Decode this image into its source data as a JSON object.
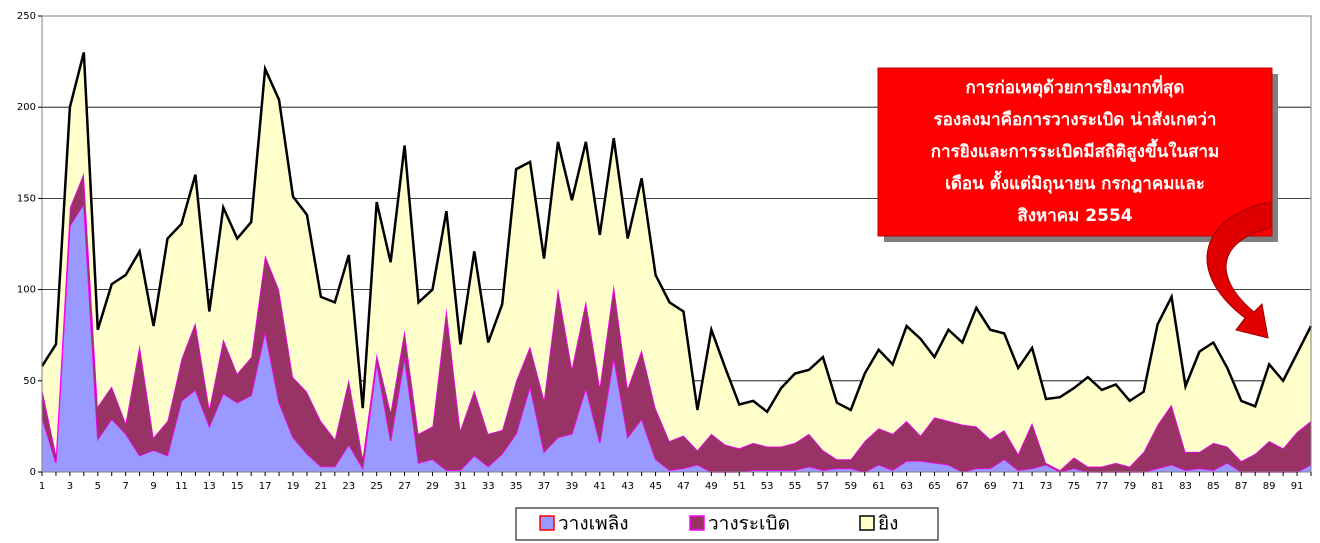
{
  "chart_data": {
    "type": "stacked_area",
    "categories": [
      1,
      null,
      3,
      null,
      5,
      null,
      7,
      null,
      9,
      null,
      11,
      null,
      13,
      null,
      15,
      null,
      17,
      null,
      19,
      null,
      21,
      null,
      23,
      null,
      25,
      null,
      27,
      null,
      29,
      null,
      31,
      null,
      33,
      null,
      35,
      null,
      37,
      null,
      39,
      null,
      41,
      null,
      43,
      null,
      45,
      null,
      47,
      null,
      49,
      null,
      51,
      null,
      53,
      null,
      55,
      null,
      57,
      null,
      59,
      null,
      61,
      null,
      63,
      null,
      65,
      null,
      67,
      null,
      69,
      null,
      71,
      null,
      73,
      null,
      75,
      null,
      77,
      null,
      79,
      null,
      81,
      null,
      83,
      null,
      85,
      null,
      87,
      null,
      89,
      null,
      91,
      null
    ],
    "series": [
      {
        "name": "วางเพลิง",
        "color": "#9999ff",
        "line_color": "#ff00ff",
        "values": [
          30,
          5,
          135,
          147,
          18,
          29,
          21,
          9,
          12,
          9,
          39,
          45,
          25,
          43,
          38,
          42,
          77,
          38,
          19,
          10,
          3,
          3,
          15,
          2,
          60,
          17,
          63,
          5,
          7,
          1,
          1,
          9,
          3,
          10,
          21,
          47,
          11,
          19,
          21,
          46,
          16,
          63,
          19,
          29,
          7,
          1,
          2,
          4,
          0,
          0,
          0,
          1,
          1,
          1,
          1,
          3,
          1,
          2,
          2,
          0,
          4,
          1,
          6,
          6,
          5,
          4,
          0,
          2,
          2,
          7,
          1,
          2,
          4,
          0,
          2,
          0,
          0,
          0,
          0,
          0,
          2,
          4,
          1,
          2,
          1,
          5,
          0,
          0,
          0,
          0,
          0,
          4
        ]
      },
      {
        "name": "วางระเบิด",
        "color": "#993366",
        "line_color": "#ff00ff",
        "values": [
          16,
          5,
          10,
          17,
          18,
          18,
          6,
          61,
          7,
          19,
          23,
          37,
          10,
          30,
          16,
          21,
          42,
          62,
          33,
          34,
          25,
          15,
          36,
          6,
          5,
          16,
          15,
          16,
          18,
          89,
          22,
          36,
          18,
          13,
          29,
          22,
          29,
          82,
          36,
          48,
          31,
          40,
          27,
          38,
          28,
          16,
          18,
          8,
          21,
          15,
          13,
          15,
          13,
          13,
          15,
          18,
          11,
          5,
          5,
          17,
          20,
          20,
          22,
          14,
          25,
          24,
          26,
          23,
          16,
          16,
          9,
          25,
          1,
          1,
          6,
          3,
          3,
          5,
          3,
          11,
          24,
          33,
          10,
          9,
          15,
          9,
          6,
          10,
          17,
          13,
          22,
          24
        ]
      },
      {
        "name": "ยิง",
        "color": "#ffffcc",
        "line_color": "#000000",
        "values": [
          12,
          60,
          55,
          66,
          42,
          56,
          81,
          51,
          61,
          100,
          74,
          81,
          53,
          72,
          74,
          74,
          102,
          104,
          99,
          97,
          68,
          75,
          68,
          27,
          83,
          82,
          101,
          72,
          75,
          53,
          47,
          76,
          50,
          69,
          116,
          101,
          77,
          80,
          92,
          87,
          83,
          80,
          82,
          94,
          73,
          76,
          68,
          22,
          57,
          42,
          24,
          23,
          19,
          32,
          38,
          35,
          51,
          31,
          27,
          37,
          43,
          38,
          52,
          53,
          33,
          50,
          45,
          65,
          60,
          53,
          47,
          41,
          35,
          40,
          38,
          49,
          42,
          43,
          36,
          33,
          55,
          59,
          36,
          55,
          55,
          43,
          33,
          26,
          42,
          37,
          43,
          52
        ]
      }
    ],
    "ylim": [
      0,
      250
    ],
    "yticks": [
      0,
      50,
      100,
      150,
      200,
      250
    ],
    "grid": true,
    "legend": "bottom",
    "annotation": [
      "การก่อเหตุด้วยการยิงมากที่สุด",
      "รองลงมาคือการวางระเบิด น่าสังเกตว่า",
      "การยิงและการระเบิดมีสถิติสูงขึ้นในสาม",
      "เดือน ตั้งแต่มิถุนายน กรกฎาคมและ",
      "สิงหาคม 2554"
    ]
  }
}
